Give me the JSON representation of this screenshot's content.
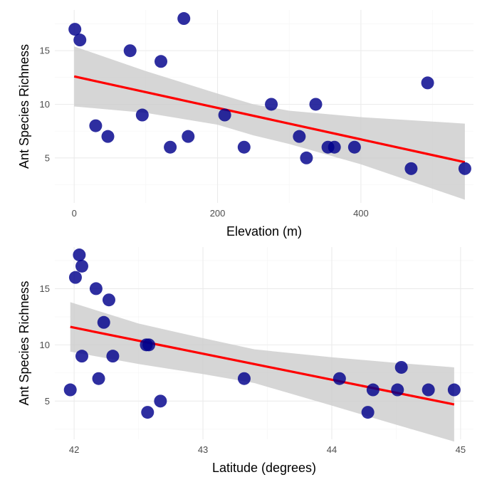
{
  "colors": {
    "points": "#00008b",
    "fit_line": "#ff0000",
    "confidence_band": "#cccccc"
  },
  "chart_data": [
    {
      "type": "scatter",
      "xlabel": "Elevation (m)",
      "ylabel": "Ant Species Richness",
      "xlim": [
        -27,
        557
      ],
      "ylim": [
        0.8,
        18.8
      ],
      "x_ticks": [
        0,
        200,
        400
      ],
      "y_ticks": [
        5,
        10,
        15
      ],
      "grid": true,
      "points": [
        {
          "x": 1,
          "y": 17
        },
        {
          "x": 8,
          "y": 16
        },
        {
          "x": 30,
          "y": 8
        },
        {
          "x": 47,
          "y": 7
        },
        {
          "x": 78,
          "y": 15
        },
        {
          "x": 95,
          "y": 9
        },
        {
          "x": 121,
          "y": 14
        },
        {
          "x": 134,
          "y": 6
        },
        {
          "x": 153,
          "y": 18
        },
        {
          "x": 159,
          "y": 7
        },
        {
          "x": 210,
          "y": 9
        },
        {
          "x": 237,
          "y": 6
        },
        {
          "x": 275,
          "y": 10
        },
        {
          "x": 314,
          "y": 7
        },
        {
          "x": 324,
          "y": 5
        },
        {
          "x": 337,
          "y": 10
        },
        {
          "x": 354,
          "y": 6
        },
        {
          "x": 363,
          "y": 6
        },
        {
          "x": 391,
          "y": 6
        },
        {
          "x": 470,
          "y": 4
        },
        {
          "x": 493,
          "y": 12
        },
        {
          "x": 545,
          "y": 4
        }
      ],
      "fit_line": {
        "x": [
          0,
          545
        ],
        "y": [
          12.6,
          4.6
        ]
      },
      "confidence_band": {
        "x": [
          0,
          100,
          200,
          250,
          300,
          400,
          545
        ],
        "lower": [
          9.8,
          9.2,
          8.1,
          7.1,
          6.3,
          4.4,
          1.1
        ],
        "upper": [
          15.4,
          13.1,
          11.0,
          10.0,
          9.4,
          8.8,
          8.2
        ]
      }
    },
    {
      "type": "scatter",
      "xlabel": "Latitude (degrees)",
      "ylabel": "Ant Species Richness",
      "xlim": [
        41.85,
        45.1
      ],
      "ylim": [
        1.6,
        18.7
      ],
      "x_ticks": [
        42,
        43,
        44,
        45
      ],
      "y_ticks": [
        5,
        10,
        15
      ],
      "grid": true,
      "points": [
        {
          "x": 41.97,
          "y": 6
        },
        {
          "x": 42.01,
          "y": 16
        },
        {
          "x": 42.04,
          "y": 18
        },
        {
          "x": 42.06,
          "y": 17
        },
        {
          "x": 42.06,
          "y": 9
        },
        {
          "x": 42.17,
          "y": 15
        },
        {
          "x": 42.19,
          "y": 7
        },
        {
          "x": 42.23,
          "y": 12
        },
        {
          "x": 42.27,
          "y": 14
        },
        {
          "x": 42.3,
          "y": 9
        },
        {
          "x": 42.56,
          "y": 10
        },
        {
          "x": 42.57,
          "y": 4
        },
        {
          "x": 42.58,
          "y": 10
        },
        {
          "x": 42.67,
          "y": 5
        },
        {
          "x": 43.32,
          "y": 7
        },
        {
          "x": 44.06,
          "y": 7
        },
        {
          "x": 44.28,
          "y": 4
        },
        {
          "x": 44.32,
          "y": 6
        },
        {
          "x": 44.51,
          "y": 6
        },
        {
          "x": 44.54,
          "y": 8
        },
        {
          "x": 44.75,
          "y": 6
        },
        {
          "x": 44.95,
          "y": 6
        }
      ],
      "fit_line": {
        "x": [
          41.97,
          44.95
        ],
        "y": [
          11.6,
          4.7
        ]
      },
      "confidence_band": {
        "x": [
          41.97,
          42.5,
          43.0,
          43.4,
          44.0,
          44.5,
          44.95
        ],
        "lower": [
          9.4,
          8.3,
          7.4,
          6.6,
          4.6,
          2.9,
          1.4
        ],
        "upper": [
          13.8,
          11.9,
          10.6,
          9.6,
          8.9,
          8.4,
          8.0
        ]
      }
    }
  ]
}
